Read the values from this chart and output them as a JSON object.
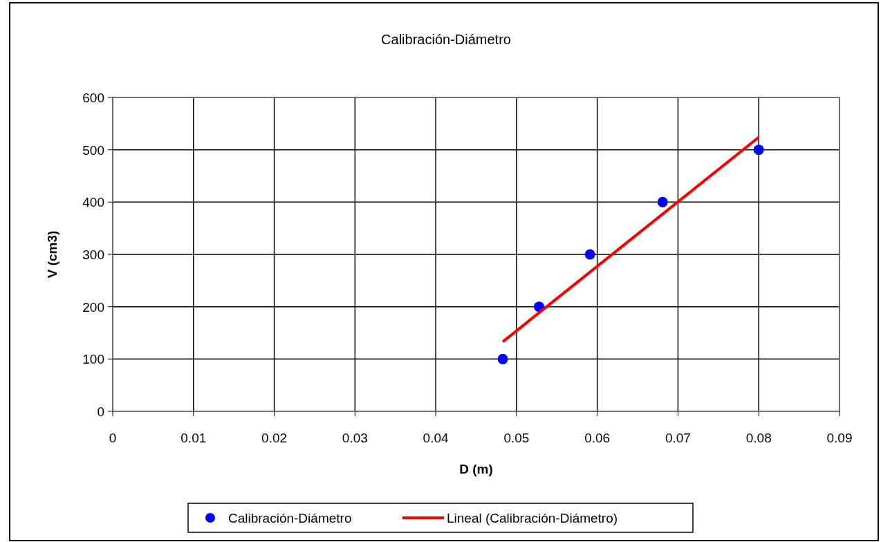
{
  "chart_data": {
    "type": "scatter",
    "title": "Calibración-Diámetro",
    "xlabel": "D (m)",
    "ylabel": "V (cm3)",
    "xlim": [
      0,
      0.09
    ],
    "xticks": [
      0,
      0.01,
      0.02,
      0.03,
      0.04,
      0.05,
      0.06,
      0.07,
      0.08,
      0.09
    ],
    "ylim": [
      0,
      600
    ],
    "yticks": [
      0,
      100,
      200,
      300,
      400,
      500,
      600
    ],
    "grid": true,
    "legend": "bottom",
    "series": [
      {
        "name": "Calibración-Diámetro",
        "type": "scatter",
        "color": "#0000ff",
        "marker": "circle",
        "x": [
          0.0483,
          0.0528,
          0.0591,
          0.0681,
          0.08
        ],
        "values": [
          100,
          200,
          300,
          400,
          500
        ]
      },
      {
        "name": "Lineal (Calibración-Diámetro)",
        "type": "line",
        "color": "#ff0000",
        "marker": "none",
        "line_style": "solid",
        "x": [
          0.0483,
          0.08
        ],
        "values": [
          133,
          524
        ]
      }
    ]
  }
}
